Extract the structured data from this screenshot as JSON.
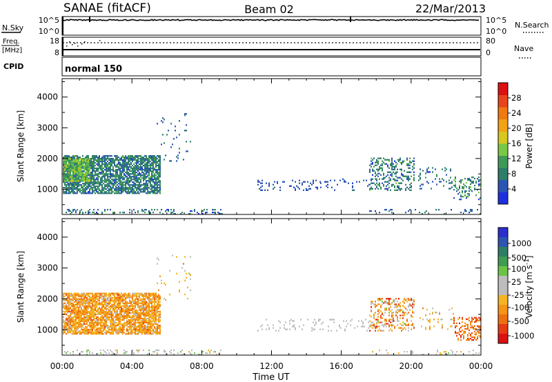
{
  "header": {
    "station": "SANAE (fitACF)",
    "beam": "Beam 02",
    "date": "22/Mar/2013"
  },
  "top_panels": {
    "nsky_label": "N.Sky",
    "nsky_ticks": [
      "10^5",
      "10^0"
    ],
    "nsearch_label": "N.Search",
    "nsearch_ticks": [
      "10^5",
      "10^0"
    ],
    "freq_label_1": "Freq.",
    "freq_label_2": "[MHz]",
    "freq_ticks": [
      "18",
      "8"
    ],
    "nave_label": "Nave",
    "nave_ticks": [
      "80",
      "0"
    ],
    "cpid_label": "CPID",
    "cpid_value": "normal 150"
  },
  "colors": {
    "power": [
      "#1f2fe0",
      "#2b55b5",
      "#2e7d6b",
      "#3f9a57",
      "#78c845",
      "#d7c71e",
      "#f2a213",
      "#f07a0f",
      "#e8451a",
      "#dd1111"
    ],
    "velocity": [
      "#2c2fcc",
      "#2e56b0",
      "#2e7d64",
      "#3f9a52",
      "#6cc447",
      "#bdbdbd",
      "#bdbdbd",
      "#f4b423",
      "#f59415",
      "#ed6f11",
      "#e63a13",
      "#dd1111"
    ]
  },
  "chart_data": [
    {
      "type": "heatmap",
      "name": "power-panel",
      "ylabel": "Slant Range [km]",
      "xlim": [
        0,
        24
      ],
      "ylim": [
        180,
        4600
      ],
      "y_ticks": [
        1000,
        2000,
        3000,
        4000
      ],
      "colorbar_label": "Power [dB]",
      "colorbar_ticks": [
        "4",
        "8",
        "12",
        "16",
        "20",
        "24",
        "28"
      ],
      "colorbar_range": [
        0,
        32
      ],
      "grid": false,
      "regions": [
        {
          "t0": 0.05,
          "t1": 5.6,
          "r0": 850,
          "r1": 2100,
          "mean": 8,
          "sd": 4,
          "density": 0.78
        },
        {
          "t0": 0.05,
          "t1": 1.6,
          "r0": 1250,
          "r1": 2000,
          "mean": 13,
          "sd": 4,
          "density": 0.85
        },
        {
          "t0": 0.05,
          "t1": 9.2,
          "r0": 180,
          "r1": 330,
          "mean": 7,
          "sd": 4,
          "density": 0.22
        },
        {
          "t0": 5.4,
          "t1": 7.4,
          "r0": 1900,
          "r1": 3500,
          "mean": 6,
          "sd": 2,
          "density": 0.03
        },
        {
          "t0": 11.2,
          "t1": 14.8,
          "r0": 950,
          "r1": 1300,
          "mean": 5,
          "sd": 2,
          "density": 0.16
        },
        {
          "t0": 14.8,
          "t1": 17.6,
          "r0": 950,
          "r1": 1350,
          "mean": 5,
          "sd": 2,
          "density": 0.1
        },
        {
          "t0": 17.6,
          "t1": 20.2,
          "r0": 950,
          "r1": 2000,
          "mean": 8,
          "sd": 5,
          "density": 0.3
        },
        {
          "t0": 20.4,
          "t1": 22.4,
          "r0": 1000,
          "r1": 1700,
          "mean": 6,
          "sd": 3,
          "density": 0.12
        },
        {
          "t0": 22.4,
          "t1": 24.0,
          "r0": 650,
          "r1": 1400,
          "mean": 9,
          "sd": 6,
          "density": 0.3
        },
        {
          "t0": 17.6,
          "t1": 24.0,
          "r0": 180,
          "r1": 330,
          "mean": 6,
          "sd": 3,
          "density": 0.1
        }
      ]
    },
    {
      "type": "heatmap",
      "name": "velocity-panel",
      "xlabel": "Time UT",
      "ylabel": "Slant Range [km]",
      "xlim": [
        0,
        24
      ],
      "ylim": [
        180,
        4600
      ],
      "x_ticks": [
        "00:00",
        "04:00",
        "08:00",
        "12:00",
        "16:00",
        "20:00",
        "00:00"
      ],
      "y_ticks": [
        1000,
        2000,
        3000,
        4000
      ],
      "colorbar_label": "Velocity [m s^-1]",
      "colorbar_ticks": [
        "1000",
        "500",
        "100",
        "25",
        "-25",
        "-100",
        "-500",
        "-1000"
      ],
      "grid": false,
      "regions": [
        {
          "t0": 0.05,
          "t1": 5.6,
          "r0": 850,
          "r1": 2200,
          "mean": 7.6,
          "sd": 1.6,
          "density": 0.8
        },
        {
          "t0": 0.05,
          "t1": 9.2,
          "r0": 180,
          "r1": 330,
          "mean": 5.5,
          "sd": 1.5,
          "density": 0.2
        },
        {
          "t0": 5.4,
          "t1": 7.4,
          "r0": 1900,
          "r1": 3500,
          "mean": 6.5,
          "sd": 1.5,
          "density": 0.03
        },
        {
          "t0": 11.2,
          "t1": 17.6,
          "r0": 950,
          "r1": 1350,
          "mean": 5.5,
          "sd": 0.3,
          "density": 0.12
        },
        {
          "t0": 17.6,
          "t1": 20.2,
          "r0": 950,
          "r1": 2000,
          "mean": 7.5,
          "sd": 3,
          "density": 0.3
        },
        {
          "t0": 20.4,
          "t1": 22.4,
          "r0": 1000,
          "r1": 1700,
          "mean": 7,
          "sd": 2,
          "density": 0.12
        },
        {
          "t0": 22.4,
          "t1": 24.0,
          "r0": 650,
          "r1": 1400,
          "mean": 9,
          "sd": 1.6,
          "density": 0.32
        },
        {
          "t0": 17.6,
          "t1": 24.0,
          "r0": 180,
          "r1": 330,
          "mean": 6,
          "sd": 1.5,
          "density": 0.1
        }
      ]
    }
  ]
}
